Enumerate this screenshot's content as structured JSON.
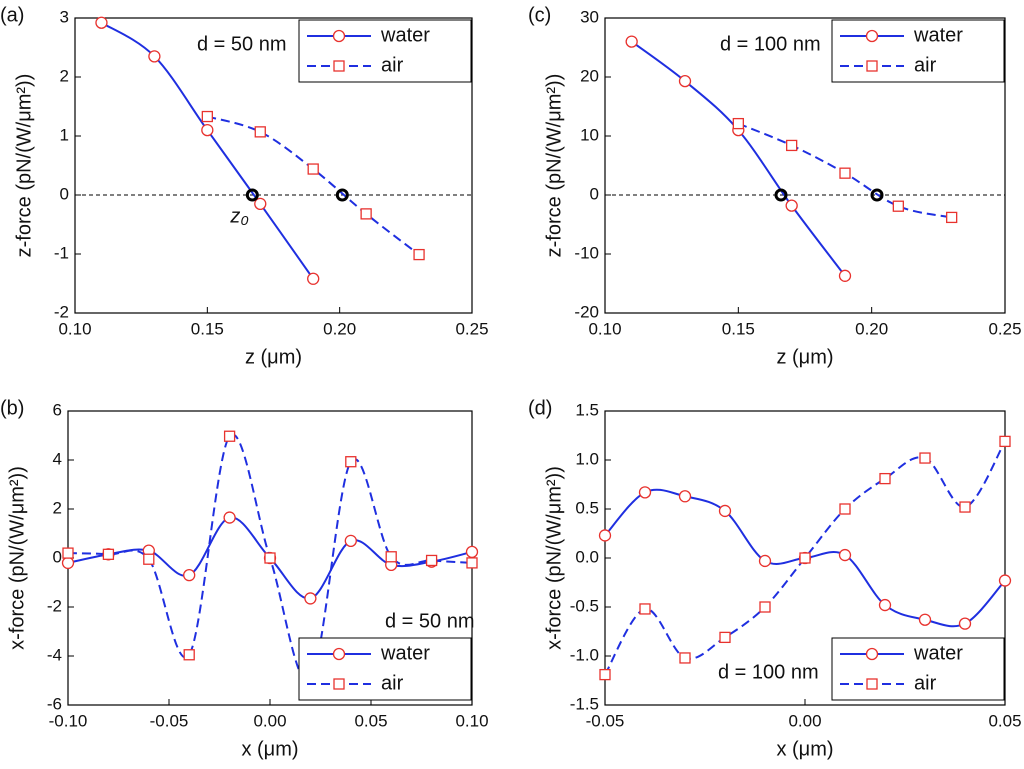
{
  "chart_data": [
    {
      "type": "line",
      "panel_label": "(a)",
      "annotation": "d = 50 nm",
      "point_label": "z₀",
      "x_label": "z (μm)",
      "y_label": "z-force (pN/(W/μm²))",
      "xlim": [
        0.1,
        0.25
      ],
      "xticks": [
        {
          "value": 0.1,
          "label": "0.10"
        },
        {
          "value": 0.15,
          "label": "0.15"
        },
        {
          "value": 0.2,
          "label": "0.20"
        },
        {
          "value": 0.25,
          "label": "0.25"
        }
      ],
      "ylim": [
        -2,
        3
      ],
      "yticks": [
        -2,
        -1,
        0,
        1,
        2,
        3
      ],
      "zero_line": true,
      "zero_points": [
        0.167,
        0.201
      ],
      "legend": "upper right",
      "series": [
        {
          "name": "water",
          "color": "#1f2fe0",
          "marker_color": "#e8322e",
          "marker": "circle",
          "dashed": false,
          "x": [
            0.11,
            0.13,
            0.15,
            0.17,
            0.19
          ],
          "values": [
            2.92,
            2.35,
            1.1,
            -0.15,
            -1.42
          ]
        },
        {
          "name": "air",
          "color": "#1f2fe0",
          "marker_color": "#e8322e",
          "marker": "square",
          "dashed": true,
          "x": [
            0.15,
            0.17,
            0.19,
            0.21,
            0.23
          ],
          "values": [
            1.33,
            1.07,
            0.44,
            -0.32,
            -1.01
          ]
        }
      ]
    },
    {
      "type": "line",
      "panel_label": "(c)",
      "annotation": "d = 100 nm",
      "x_label": "z (μm)",
      "y_label": "z-force (pN/(W/μm²))",
      "xlim": [
        0.1,
        0.25
      ],
      "xticks": [
        {
          "value": 0.1,
          "label": "0.10"
        },
        {
          "value": 0.15,
          "label": "0.15"
        },
        {
          "value": 0.2,
          "label": "0.20"
        },
        {
          "value": 0.25,
          "label": "0.25"
        }
      ],
      "ylim": [
        -20,
        30
      ],
      "yticks": [
        -20,
        -10,
        0,
        10,
        20,
        30
      ],
      "zero_line": true,
      "zero_points": [
        0.166,
        0.202
      ],
      "legend": "upper right",
      "series": [
        {
          "name": "water",
          "color": "#1f2fe0",
          "marker_color": "#e8322e",
          "marker": "circle",
          "dashed": false,
          "x": [
            0.11,
            0.13,
            0.15,
            0.17,
            0.19
          ],
          "values": [
            26,
            19.3,
            11,
            -1.8,
            -13.7
          ]
        },
        {
          "name": "air",
          "color": "#1f2fe0",
          "marker_color": "#e8322e",
          "marker": "square",
          "dashed": true,
          "x": [
            0.15,
            0.17,
            0.19,
            0.21,
            0.23
          ],
          "values": [
            12.1,
            8.4,
            3.7,
            -1.9,
            -3.8
          ]
        }
      ]
    },
    {
      "type": "line",
      "panel_label": "(b)",
      "annotation": "d = 50 nm",
      "x_label": "x (μm)",
      "y_label": "x-force (pN/(W/μm²))",
      "xlim": [
        -0.1,
        0.1
      ],
      "xticks": [
        {
          "value": -0.1,
          "label": "-0.10"
        },
        {
          "value": -0.05,
          "label": "-0.05"
        },
        {
          "value": 0,
          "label": "0.00"
        },
        {
          "value": 0.05,
          "label": "0.05"
        },
        {
          "value": 0.1,
          "label": "0.10"
        }
      ],
      "ylim": [
        -6,
        6
      ],
      "yticks": [
        -6,
        -4,
        -2,
        0,
        2,
        4,
        6
      ],
      "zero_line": false,
      "legend": "lower right",
      "series": [
        {
          "name": "water",
          "color": "#1f2fe0",
          "marker_color": "#e8322e",
          "marker": "circle",
          "dashed": false,
          "x": [
            -0.1,
            -0.08,
            -0.06,
            -0.04,
            -0.02,
            0,
            0.02,
            0.04,
            0.06,
            0.08,
            0.1
          ],
          "values": [
            -0.2,
            0.15,
            0.3,
            -0.7,
            1.65,
            0,
            -1.65,
            0.7,
            -0.28,
            -0.15,
            0.25
          ]
        },
        {
          "name": "air",
          "color": "#1f2fe0",
          "marker_color": "#e8322e",
          "marker": "square",
          "dashed": true,
          "x": [
            -0.1,
            -0.08,
            -0.06,
            -0.04,
            -0.02,
            0,
            0.02,
            0.04,
            0.06,
            0.08,
            0.1
          ],
          "values": [
            0.2,
            0.15,
            -0.05,
            -3.95,
            4.97,
            0,
            -4.97,
            3.93,
            0.05,
            -0.1,
            -0.2
          ]
        }
      ]
    },
    {
      "type": "line",
      "panel_label": "(d)",
      "annotation": "d = 100 nm",
      "x_label": "x (μm)",
      "y_label": "x-force (pN/(W/μm²))",
      "xlim": [
        -0.05,
        0.05
      ],
      "xticks": [
        {
          "value": -0.05,
          "label": "-0.05"
        },
        {
          "value": 0,
          "label": "0.00"
        },
        {
          "value": 0.05,
          "label": "0.05"
        }
      ],
      "ylim": [
        -1.5,
        1.5
      ],
      "yticks": [
        -1.5,
        {
          "value": -1,
          "label": "-1.0"
        },
        -0.5,
        {
          "value": 0,
          "label": "0.0"
        },
        0.5,
        {
          "value": 1,
          "label": "1.0"
        },
        1.5
      ],
      "zero_line": false,
      "legend": "lower right",
      "series": [
        {
          "name": "water",
          "color": "#1f2fe0",
          "marker_color": "#e8322e",
          "marker": "circle",
          "dashed": false,
          "x": [
            -0.05,
            -0.04,
            -0.03,
            -0.02,
            -0.01,
            0,
            0.01,
            0.02,
            0.03,
            0.04,
            0.05
          ],
          "values": [
            0.23,
            0.67,
            0.63,
            0.48,
            -0.03,
            0,
            0.03,
            -0.48,
            -0.63,
            -0.67,
            -0.23
          ]
        },
        {
          "name": "air",
          "color": "#1f2fe0",
          "marker_color": "#e8322e",
          "marker": "square",
          "dashed": true,
          "x": [
            -0.05,
            -0.04,
            -0.03,
            -0.02,
            -0.01,
            0,
            0.01,
            0.02,
            0.03,
            0.04,
            0.05
          ],
          "values": [
            -1.19,
            -0.52,
            -1.02,
            -0.81,
            -0.5,
            0,
            0.5,
            0.81,
            1.02,
            0.52,
            1.19
          ]
        }
      ]
    }
  ]
}
